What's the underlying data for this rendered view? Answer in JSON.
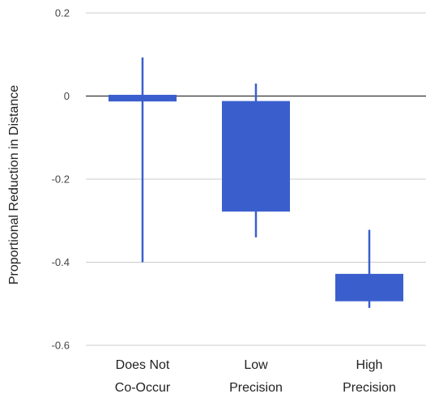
{
  "chart_data": {
    "type": "candlestick",
    "ylabel": "Proportional Reduction in Distance",
    "xlabel": "",
    "ylim": [
      -0.6,
      0.2
    ],
    "y_ticks": [
      0.2,
      0,
      -0.2,
      -0.4,
      -0.6
    ],
    "y_tick_labels": [
      "0.2",
      "0",
      "-0.2",
      "-0.4",
      "-0.6"
    ],
    "grid": true,
    "categories": [
      {
        "lines": [
          "Does Not",
          "Co-Occur"
        ]
      },
      {
        "lines": [
          "Low",
          "Precision"
        ]
      },
      {
        "lines": [
          "High",
          "Precision"
        ]
      }
    ],
    "boxes": [
      {
        "low": -0.4,
        "open": 0.003,
        "close": -0.013,
        "high": 0.093
      },
      {
        "low": -0.34,
        "open": -0.012,
        "close": -0.278,
        "high": 0.03
      },
      {
        "low": -0.51,
        "open": -0.428,
        "close": -0.494,
        "high": -0.322
      }
    ],
    "color": "#3a5fcd"
  }
}
